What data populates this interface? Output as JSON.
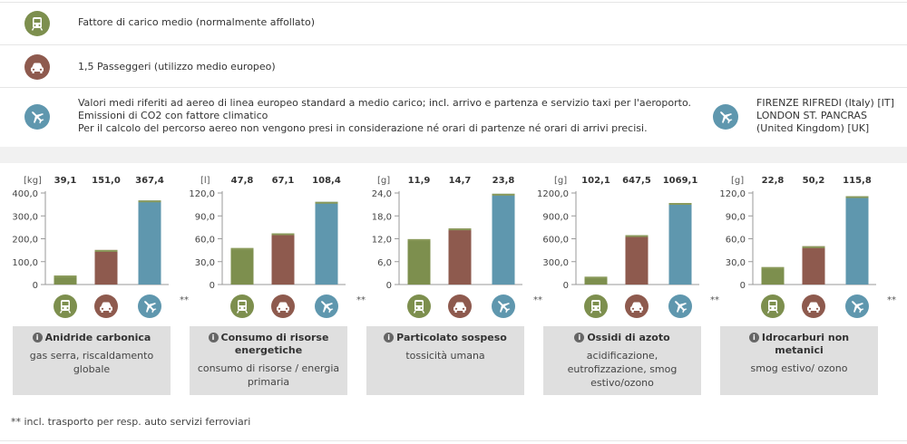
{
  "colors": {
    "train": "#7d8f4e",
    "car": "#8e5a4e",
    "plane": "#5f97ae",
    "cap": "#8a9a5b",
    "box": "#dfdfdf"
  },
  "modes": [
    {
      "icon": "train-icon",
      "lines": [
        "Fattore di carico medio (normalmente affollato)"
      ]
    },
    {
      "icon": "car-icon",
      "lines": [
        "1,5 Passeggeri (utilizzo medio europeo)"
      ]
    },
    {
      "icon": "plane-icon",
      "lines": [
        "Valori medi riferiti ad aereo di linea europeo standard a medio carico; incl. arrivo e partenza e servizio taxi per l'aeroporto.",
        "Emissioni di CO2 con fattore climatico",
        "Per il calcolo del percorso aereo non vengono presi in considerazione né orari di partenze né orari di arrivi precisi."
      ],
      "route": [
        "FIRENZE RIFREDI (Italy) [IT]",
        "LONDON ST. PANCRAS",
        "(United Kingdom) [UK]"
      ]
    }
  ],
  "asterisk": "**",
  "chart_data": [
    {
      "type": "bar",
      "unit": "[kg]",
      "categories": [
        "train",
        "car",
        "plane"
      ],
      "values": [
        39.1,
        151.0,
        367.4
      ],
      "value_labels": [
        "39,1",
        "151,0",
        "367,4"
      ],
      "ylim": [
        0,
        400
      ],
      "ticks": [
        0,
        100,
        200,
        300,
        400
      ],
      "tick_labels": [
        "0",
        "100,0",
        "200,0",
        "300,0",
        "400,0"
      ],
      "title": "Anidride carbonica",
      "desc": "gas serra, riscaldamento globale"
    },
    {
      "type": "bar",
      "unit": "[l]",
      "categories": [
        "train",
        "car",
        "plane"
      ],
      "values": [
        47.8,
        67.1,
        108.4
      ],
      "value_labels": [
        "47,8",
        "67,1",
        "108,4"
      ],
      "ylim": [
        0,
        120
      ],
      "ticks": [
        0,
        30,
        60,
        90,
        120
      ],
      "tick_labels": [
        "0",
        "30,0",
        "60,0",
        "90,0",
        "120,0"
      ],
      "title": "Consumo di risorse energetiche",
      "desc": "consumo di risorse / energia primaria"
    },
    {
      "type": "bar",
      "unit": "[g]",
      "categories": [
        "train",
        "car",
        "plane"
      ],
      "values": [
        11.9,
        14.7,
        23.8
      ],
      "value_labels": [
        "11,9",
        "14,7",
        "23,8"
      ],
      "ylim": [
        0,
        24
      ],
      "ticks": [
        0,
        6,
        12,
        18,
        24
      ],
      "tick_labels": [
        "0",
        "6,0",
        "12,0",
        "18,0",
        "24,0"
      ],
      "title": "Particolato sospeso",
      "desc": "tossicità umana"
    },
    {
      "type": "bar",
      "unit": "[g]",
      "categories": [
        "train",
        "car",
        "plane"
      ],
      "values": [
        102.1,
        647.5,
        1069.1
      ],
      "value_labels": [
        "102,1",
        "647,5",
        "1069,1"
      ],
      "ylim": [
        0,
        1200
      ],
      "ticks": [
        0,
        300,
        600,
        900,
        1200
      ],
      "tick_labels": [
        "0",
        "300,0",
        "600,0",
        "900,0",
        "1200,0"
      ],
      "title": "Ossidi di azoto",
      "desc": "acidificazione, eutrofizzazione, smog estivo/ozono"
    },
    {
      "type": "bar",
      "unit": "[g]",
      "categories": [
        "train",
        "car",
        "plane"
      ],
      "values": [
        22.8,
        50.2,
        115.8
      ],
      "value_labels": [
        "22,8",
        "50,2",
        "115,8"
      ],
      "ylim": [
        0,
        120
      ],
      "ticks": [
        0,
        30,
        60,
        90,
        120
      ],
      "tick_labels": [
        "0",
        "30,0",
        "60,0",
        "90,0",
        "120,0"
      ],
      "title": "Idrocarburi non metanici",
      "desc": "smog estivo/ ozono"
    }
  ],
  "footnote": "** incl. trasporto per resp. auto servizi ferroviari"
}
